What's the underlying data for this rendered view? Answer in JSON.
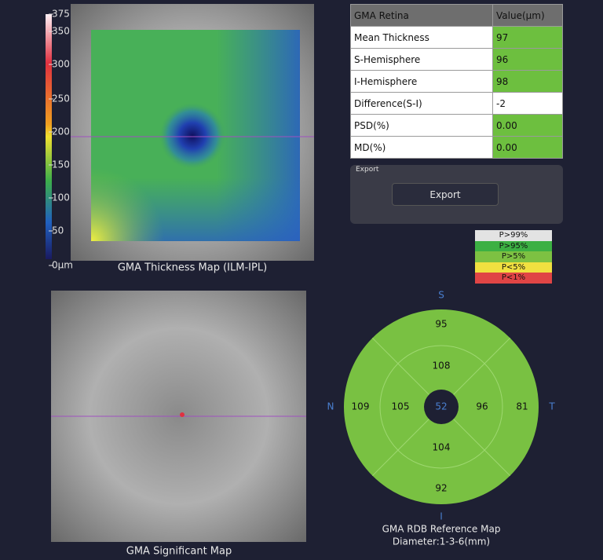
{
  "thickness_map": {
    "title": "GMA Thickness Map (ILM-IPL)",
    "scale_labels": [
      "375",
      "350",
      "300",
      "250",
      "200",
      "150",
      "100",
      "50",
      "0μm"
    ]
  },
  "retina_table": {
    "header": [
      "GMA Retina",
      "Value(μm)"
    ],
    "rows": [
      [
        "Mean Thickness",
        "97"
      ],
      [
        "S-Hemisphere",
        "96"
      ],
      [
        "I-Hemisphere",
        "98"
      ],
      [
        "Difference(S-I)",
        "-2"
      ],
      [
        "PSD(%)",
        "0.00"
      ],
      [
        "MD(%)",
        "0.00"
      ]
    ]
  },
  "export": {
    "group_label": "Export",
    "button": "Export"
  },
  "legend": [
    {
      "label": "P>99%",
      "color": "#e3e3e3"
    },
    {
      "label": "P>95%",
      "color": "#3cb043"
    },
    {
      "label": "P>5%",
      "color": "#7dc142"
    },
    {
      "label": "P<5%",
      "color": "#f0e040"
    },
    {
      "label": "P<1%",
      "color": "#e04545"
    }
  ],
  "significant_map": {
    "title": "GMA Significant Map"
  },
  "rdb_map": {
    "title": "GMA RDB Reference Map",
    "subtitle": "Diameter:1-3-6(mm)",
    "directions": [
      "S",
      "N",
      "T",
      "I"
    ],
    "center": "52",
    "inner": [
      "108",
      "105",
      "96",
      "104"
    ],
    "outer": [
      "95",
      "109",
      "81",
      "92"
    ]
  }
}
